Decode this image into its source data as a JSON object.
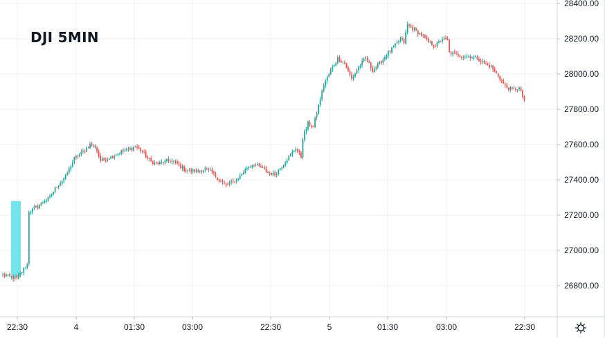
{
  "chart_data": {
    "type": "candlestick",
    "title": "DJI 5MIN",
    "y_axis": {
      "ticks": [
        "28400.00",
        "28200.00",
        "28000.00",
        "27800.00",
        "27600.00",
        "27400.00",
        "27200.00",
        "27000.00",
        "26800.00"
      ],
      "range": [
        26620,
        28420
      ],
      "position": "right"
    },
    "x_axis": {
      "ticks": [
        "22:30",
        "4",
        "01:30",
        "03:00",
        "22:30",
        "5",
        "01:30",
        "03:00",
        "22:30"
      ]
    },
    "grid": true,
    "highlight": {
      "x_range": [
        "22:00",
        "22:30"
      ],
      "y_range": [
        26850,
        27280
      ],
      "color": "#5ce0ea"
    },
    "colors": {
      "up": "#26a69a",
      "down": "#ef5350",
      "grid": "#eef0f3",
      "axis_text": "#131722"
    },
    "close_path": [
      [
        0,
        26860
      ],
      [
        8,
        26840
      ],
      [
        14,
        26920
      ],
      [
        15,
        27220
      ],
      [
        20,
        27250
      ],
      [
        27,
        27300
      ],
      [
        30,
        27350
      ],
      [
        36,
        27420
      ],
      [
        41,
        27520
      ],
      [
        46,
        27560
      ],
      [
        50,
        27600
      ],
      [
        53,
        27590
      ],
      [
        56,
        27510
      ],
      [
        60,
        27520
      ],
      [
        64,
        27540
      ],
      [
        68,
        27560
      ],
      [
        72,
        27570
      ],
      [
        76,
        27590
      ],
      [
        80,
        27560
      ],
      [
        84,
        27510
      ],
      [
        88,
        27490
      ],
      [
        92,
        27500
      ],
      [
        96,
        27510
      ],
      [
        100,
        27490
      ],
      [
        104,
        27460
      ],
      [
        108,
        27450
      ],
      [
        112,
        27450
      ],
      [
        116,
        27460
      ],
      [
        120,
        27440
      ],
      [
        124,
        27400
      ],
      [
        128,
        27370
      ],
      [
        132,
        27390
      ],
      [
        136,
        27420
      ],
      [
        140,
        27470
      ],
      [
        144,
        27490
      ],
      [
        148,
        27470
      ],
      [
        152,
        27440
      ],
      [
        156,
        27430
      ],
      [
        160,
        27480
      ],
      [
        164,
        27530
      ],
      [
        168,
        27580
      ],
      [
        171,
        27530
      ],
      [
        172,
        27640
      ],
      [
        175,
        27720
      ],
      [
        178,
        27700
      ],
      [
        181,
        27820
      ],
      [
        184,
        27940
      ],
      [
        188,
        28020
      ],
      [
        192,
        28090
      ],
      [
        196,
        28060
      ],
      [
        200,
        27970
      ],
      [
        204,
        28040
      ],
      [
        208,
        28090
      ],
      [
        212,
        28020
      ],
      [
        216,
        28060
      ],
      [
        220,
        28110
      ],
      [
        224,
        28150
      ],
      [
        228,
        28200
      ],
      [
        230,
        28180
      ],
      [
        232,
        28280
      ],
      [
        236,
        28250
      ],
      [
        240,
        28220
      ],
      [
        244,
        28180
      ],
      [
        248,
        28160
      ],
      [
        252,
        28200
      ],
      [
        255,
        28190
      ],
      [
        256,
        28120
      ],
      [
        260,
        28110
      ],
      [
        264,
        28100
      ],
      [
        268,
        28100
      ],
      [
        272,
        28090
      ],
      [
        276,
        28060
      ],
      [
        280,
        28040
      ],
      [
        284,
        27990
      ],
      [
        288,
        27930
      ],
      [
        292,
        27910
      ],
      [
        296,
        27920
      ],
      [
        299,
        27850
      ]
    ]
  }
}
